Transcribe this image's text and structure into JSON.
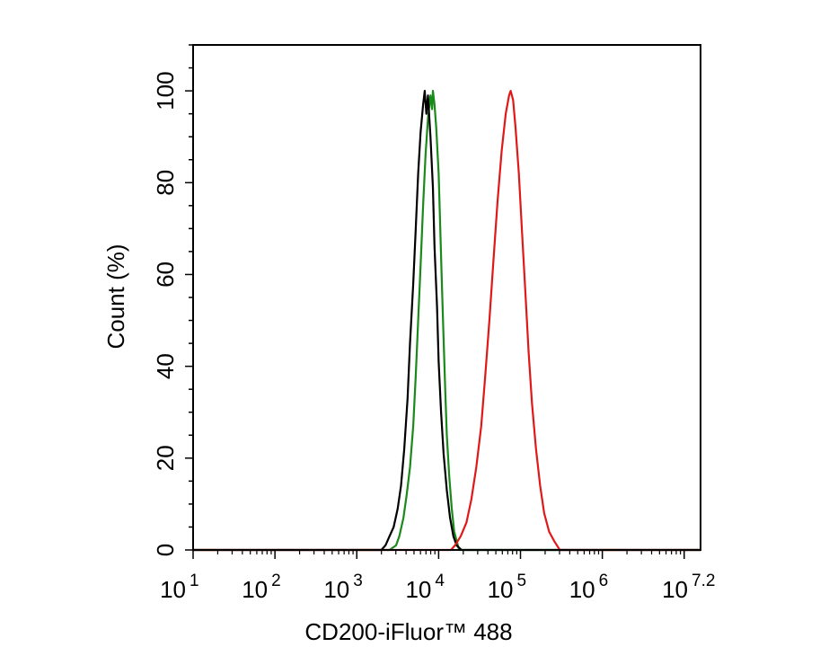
{
  "chart_data": {
    "type": "line",
    "title": "",
    "xlabel": "CD200-iFluor™ 488",
    "ylabel": "Count  (%)",
    "xscale": "log",
    "xlim": [
      1,
      7.2
    ],
    "ylim": [
      0,
      110
    ],
    "x_tick_base": "10",
    "x_ticks": [
      {
        "value": 1,
        "exp": "1"
      },
      {
        "value": 2,
        "exp": "2"
      },
      {
        "value": 3,
        "exp": "3"
      },
      {
        "value": 4,
        "exp": "4"
      },
      {
        "value": 5,
        "exp": "5"
      },
      {
        "value": 6,
        "exp": "6"
      },
      {
        "value": 7.2,
        "exp": "7.2"
      }
    ],
    "y_ticks": [
      0,
      20,
      40,
      60,
      80,
      100
    ],
    "grid": false,
    "legend": "none",
    "series": [
      {
        "color": "#1a8a1a",
        "points": [
          [
            1.0,
            0
          ],
          [
            3.4,
            0
          ],
          [
            3.48,
            1
          ],
          [
            3.52,
            3
          ],
          [
            3.57,
            7
          ],
          [
            3.61,
            12
          ],
          [
            3.65,
            18
          ],
          [
            3.69,
            27
          ],
          [
            3.72,
            38
          ],
          [
            3.75,
            50
          ],
          [
            3.78,
            62
          ],
          [
            3.81,
            75
          ],
          [
            3.84,
            86
          ],
          [
            3.87,
            94
          ],
          [
            3.9,
            99
          ],
          [
            3.92,
            96
          ],
          [
            3.93,
            100
          ],
          [
            3.95,
            97
          ],
          [
            3.97,
            92
          ],
          [
            4.0,
            82
          ],
          [
            4.02,
            70
          ],
          [
            4.04,
            58
          ],
          [
            4.06,
            46
          ],
          [
            4.08,
            35
          ],
          [
            4.1,
            25
          ],
          [
            4.13,
            16
          ],
          [
            4.16,
            9
          ],
          [
            4.19,
            4
          ],
          [
            4.22,
            2
          ],
          [
            4.25,
            0
          ],
          [
            7.2,
            0
          ]
        ]
      },
      {
        "color": "#000000",
        "points": [
          [
            1.0,
            0
          ],
          [
            3.3,
            0
          ],
          [
            3.35,
            1
          ],
          [
            3.4,
            3
          ],
          [
            3.45,
            5
          ],
          [
            3.5,
            9
          ],
          [
            3.54,
            14
          ],
          [
            3.58,
            22
          ],
          [
            3.62,
            33
          ],
          [
            3.65,
            45
          ],
          [
            3.69,
            58
          ],
          [
            3.72,
            70
          ],
          [
            3.75,
            82
          ],
          [
            3.78,
            91
          ],
          [
            3.81,
            97
          ],
          [
            3.83,
            100
          ],
          [
            3.85,
            95
          ],
          [
            3.87,
            99
          ],
          [
            3.9,
            90
          ],
          [
            3.93,
            79
          ],
          [
            3.95,
            66
          ],
          [
            3.98,
            53
          ],
          [
            4.0,
            41
          ],
          [
            4.03,
            30
          ],
          [
            4.06,
            21
          ],
          [
            4.1,
            13
          ],
          [
            4.14,
            7
          ],
          [
            4.18,
            3
          ],
          [
            4.22,
            1
          ],
          [
            4.28,
            0
          ],
          [
            7.2,
            0
          ]
        ]
      },
      {
        "color": "#e01818",
        "points": [
          [
            1.0,
            0
          ],
          [
            4.15,
            0
          ],
          [
            4.2,
            1
          ],
          [
            4.27,
            3
          ],
          [
            4.34,
            6
          ],
          [
            4.4,
            11
          ],
          [
            4.46,
            18
          ],
          [
            4.52,
            27
          ],
          [
            4.57,
            38
          ],
          [
            4.62,
            50
          ],
          [
            4.67,
            63
          ],
          [
            4.72,
            76
          ],
          [
            4.77,
            87
          ],
          [
            4.82,
            95
          ],
          [
            4.86,
            99
          ],
          [
            4.88,
            100
          ],
          [
            4.91,
            98
          ],
          [
            4.94,
            92
          ],
          [
            4.98,
            82
          ],
          [
            5.02,
            69
          ],
          [
            5.06,
            56
          ],
          [
            5.1,
            43
          ],
          [
            5.14,
            32
          ],
          [
            5.19,
            22
          ],
          [
            5.24,
            14
          ],
          [
            5.29,
            8
          ],
          [
            5.35,
            4
          ],
          [
            5.41,
            2
          ],
          [
            5.48,
            0
          ],
          [
            7.2,
            0
          ]
        ]
      }
    ]
  }
}
